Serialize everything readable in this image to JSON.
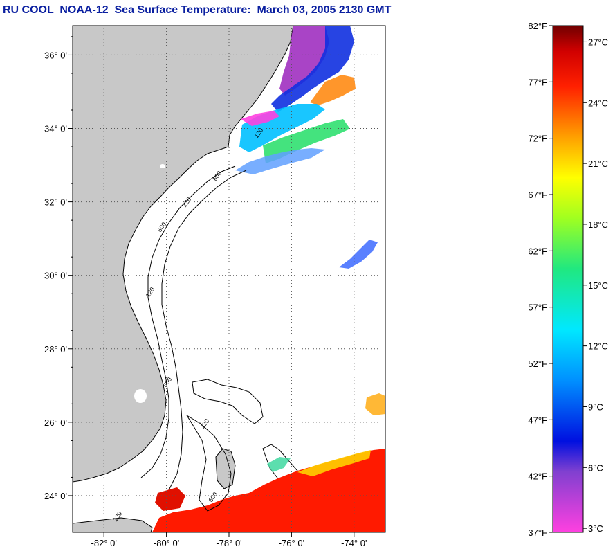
{
  "title": "RU COOL  NOAA-12  Sea Surface Temperature:  March 03, 2005 2130 GMT",
  "map": {
    "lat_labels": [
      "36° 0'",
      "34° 0'",
      "32° 0'",
      "30° 0'",
      "28° 0'",
      "26° 0'",
      "24° 0'"
    ],
    "lon_labels": [
      "-82° 0'",
      "-80° 0'",
      "-78° 0'",
      "-76° 0'",
      "-74° 0'"
    ],
    "lat_range": [
      23.0,
      36.8
    ],
    "lon_range": [
      -83.0,
      -73.0
    ],
    "contour_labels": [
      "120",
      "600",
      "120",
      "600",
      "120",
      "600",
      "120",
      "600",
      "120"
    ],
    "colors": {
      "land": "#c8c8c8",
      "ocean": "#ffffff",
      "coast": "#000000"
    }
  },
  "colorbar": {
    "f_labels": [
      "82°F",
      "77°F",
      "72°F",
      "67°F",
      "62°F",
      "57°F",
      "52°F",
      "47°F",
      "42°F",
      "37°F"
    ],
    "c_labels": [
      "27°C",
      "24°C",
      "21°C",
      "18°C",
      "15°C",
      "12°C",
      "9°C",
      "6°C",
      "3°C"
    ],
    "f_range": [
      37,
      82
    ],
    "c_range": [
      2.8,
      27.8
    ]
  }
}
